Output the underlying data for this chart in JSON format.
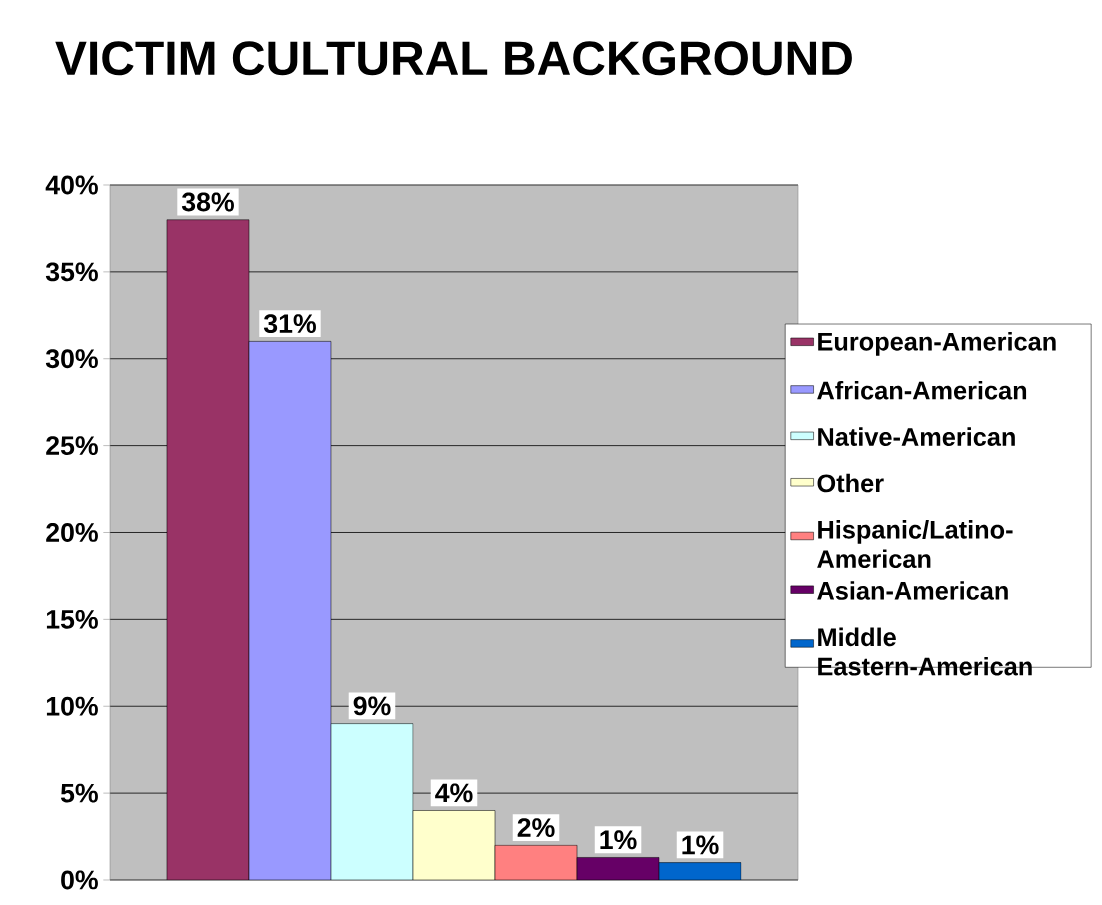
{
  "chart_data": {
    "type": "bar",
    "title": "VICTIM CULTURAL BACKGROUND",
    "categories": [
      null
    ],
    "series": [
      {
        "name": "European-American",
        "color": "#993366",
        "values": [
          38
        ],
        "value_labels": [
          "38%"
        ]
      },
      {
        "name": "African-American",
        "color": "#9999ff",
        "values": [
          31
        ],
        "value_labels": [
          "31%"
        ]
      },
      {
        "name": "Native-American",
        "color": "#ccffff",
        "values": [
          9
        ],
        "value_labels": [
          "9%"
        ]
      },
      {
        "name": "Other",
        "color": "#ffffcc",
        "values": [
          4
        ],
        "value_labels": [
          "4%"
        ]
      },
      {
        "name": "Hispanic/Latino-American",
        "color": "#ff8080",
        "values": [
          2
        ],
        "value_labels": [
          "2%"
        ]
      },
      {
        "name": "Asian-American",
        "color": "#660066",
        "values": [
          1.3
        ],
        "value_labels": [
          "1%"
        ]
      },
      {
        "name": "Middle Eastern-American",
        "color": "#0066cc",
        "values": [
          1
        ],
        "value_labels": [
          "1%"
        ]
      }
    ],
    "ylim": [
      0,
      40
    ],
    "yticks": [
      {
        "value": 0,
        "label": "0%"
      },
      {
        "value": 5,
        "label": "5%"
      },
      {
        "value": 10,
        "label": "10%"
      },
      {
        "value": 15,
        "label": "15%"
      },
      {
        "value": 20,
        "label": "20%"
      },
      {
        "value": 25,
        "label": "25%"
      },
      {
        "value": 30,
        "label": "30%"
      },
      {
        "value": 35,
        "label": "35%"
      },
      {
        "value": 40,
        "label": "40%"
      }
    ],
    "grid": "y",
    "legend": "right"
  }
}
